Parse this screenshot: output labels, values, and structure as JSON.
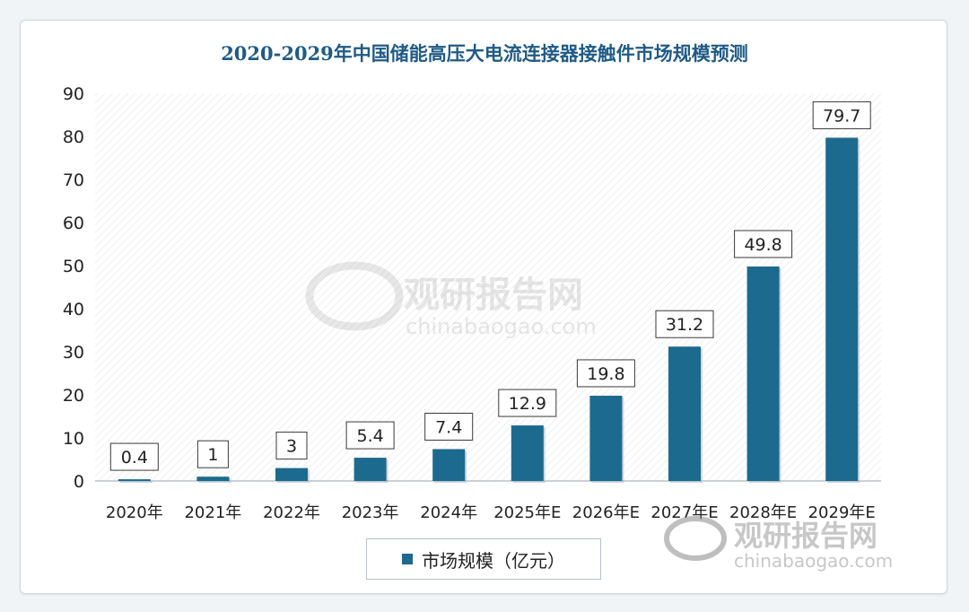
{
  "chart_data": {
    "type": "bar",
    "title": "2020-2029年中国储能高压大电流连接器接触件市场规模预测",
    "categories": [
      "2020年",
      "2021年",
      "2022年",
      "2023年",
      "2024年",
      "2025年E",
      "2026年E",
      "2027年E",
      "2028年E",
      "2029年E"
    ],
    "series": [
      {
        "name": "市场规模（亿元）",
        "values": [
          0.4,
          1,
          3,
          5.4,
          7.4,
          12.9,
          19.8,
          31.2,
          49.8,
          79.7
        ],
        "labels": [
          "0.4",
          "1",
          "3",
          "5.4",
          "7.4",
          "12.9",
          "19.8",
          "31.2",
          "49.8",
          "79.7"
        ]
      }
    ],
    "ylim": [
      0,
      90
    ],
    "yticks": [
      0,
      10,
      20,
      30,
      40,
      50,
      60,
      70,
      80,
      90
    ],
    "xlabel": "",
    "ylabel": "",
    "legend_position": "bottom",
    "bar_color": "#1c6a8e"
  },
  "watermark": {
    "name": "观研报告网",
    "url": "chinabaogao.com"
  }
}
